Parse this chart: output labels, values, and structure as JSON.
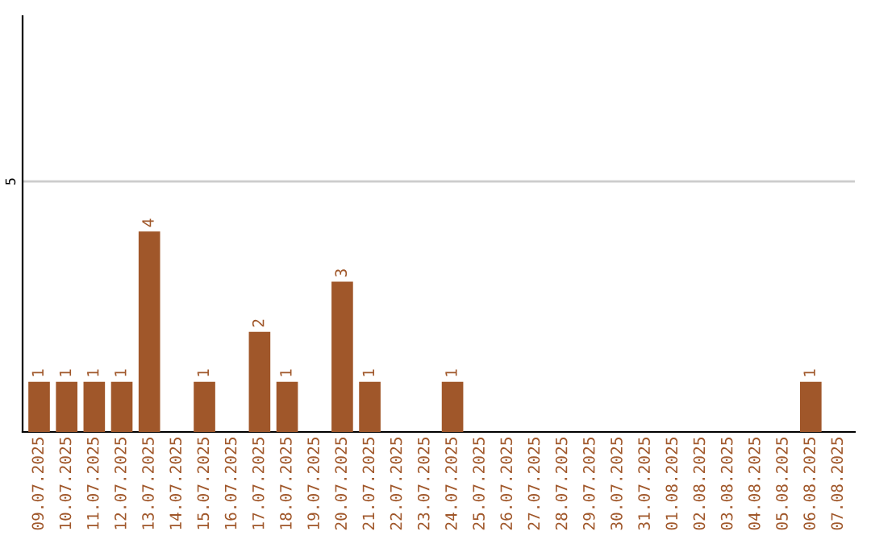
{
  "chart_data": {
    "type": "bar",
    "categories": [
      "09.07.2025",
      "10.07.2025",
      "11.07.2025",
      "12.07.2025",
      "13.07.2025",
      "14.07.2025",
      "15.07.2025",
      "16.07.2025",
      "17.07.2025",
      "18.07.2025",
      "19.07.2025",
      "20.07.2025",
      "21.07.2025",
      "22.07.2025",
      "23.07.2025",
      "24.07.2025",
      "25.07.2025",
      "26.07.2025",
      "27.07.2025",
      "28.07.2025",
      "29.07.2025",
      "30.07.2025",
      "31.07.2025",
      "01.08.2025",
      "02.08.2025",
      "03.08.2025",
      "04.08.2025",
      "05.08.2025",
      "06.08.2025",
      "07.08.2025"
    ],
    "values": [
      1,
      1,
      1,
      1,
      4,
      0,
      1,
      0,
      2,
      1,
      0,
      3,
      1,
      0,
      0,
      1,
      0,
      0,
      0,
      0,
      0,
      0,
      0,
      0,
      0,
      0,
      0,
      0,
      1,
      0
    ],
    "value_labels": [
      "1",
      "1",
      "1",
      "1",
      "4",
      null,
      "1",
      null,
      "2",
      "1",
      null,
      "3",
      "1",
      null,
      null,
      "1",
      null,
      null,
      null,
      null,
      null,
      null,
      null,
      null,
      null,
      null,
      null,
      null,
      "1",
      null
    ],
    "color": "#a0572a",
    "ylim": [
      0,
      8.3
    ],
    "yticks": [
      5
    ],
    "grid": "y"
  }
}
